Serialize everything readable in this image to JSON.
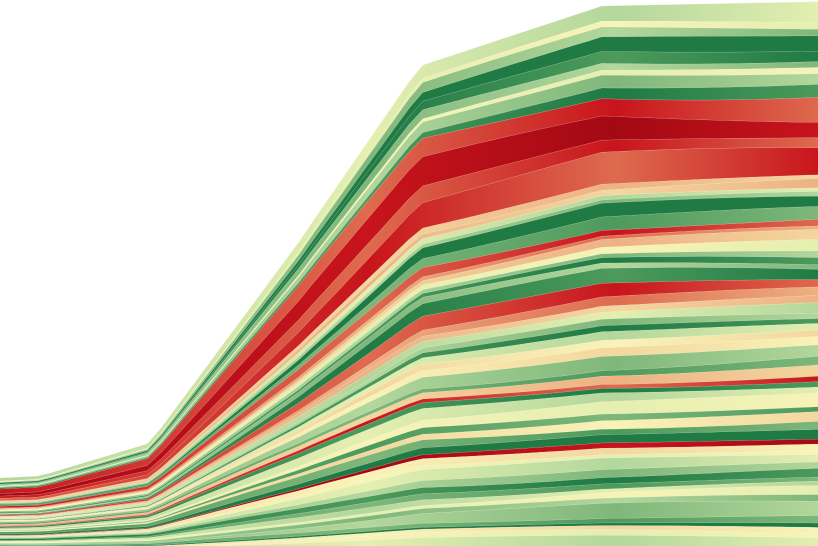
{
  "chart_data": {
    "type": "area",
    "stacking": "streamgraph",
    "title": "",
    "xlabel": "",
    "ylabel": "",
    "legend": "none",
    "grid": false,
    "axes_visible": false,
    "palette": [
      "#1f7a44",
      "#4d9a5c",
      "#7fb77a",
      "#b3d79c",
      "#e4efb0",
      "#f8f3b7",
      "#f3d79e",
      "#eeb183",
      "#de6b4f",
      "#c8141c",
      "#a30914"
    ],
    "x": [
      0,
      1,
      2,
      3,
      4,
      5,
      6,
      7,
      8,
      9,
      10,
      11,
      12
    ],
    "series_count": 64
  }
}
